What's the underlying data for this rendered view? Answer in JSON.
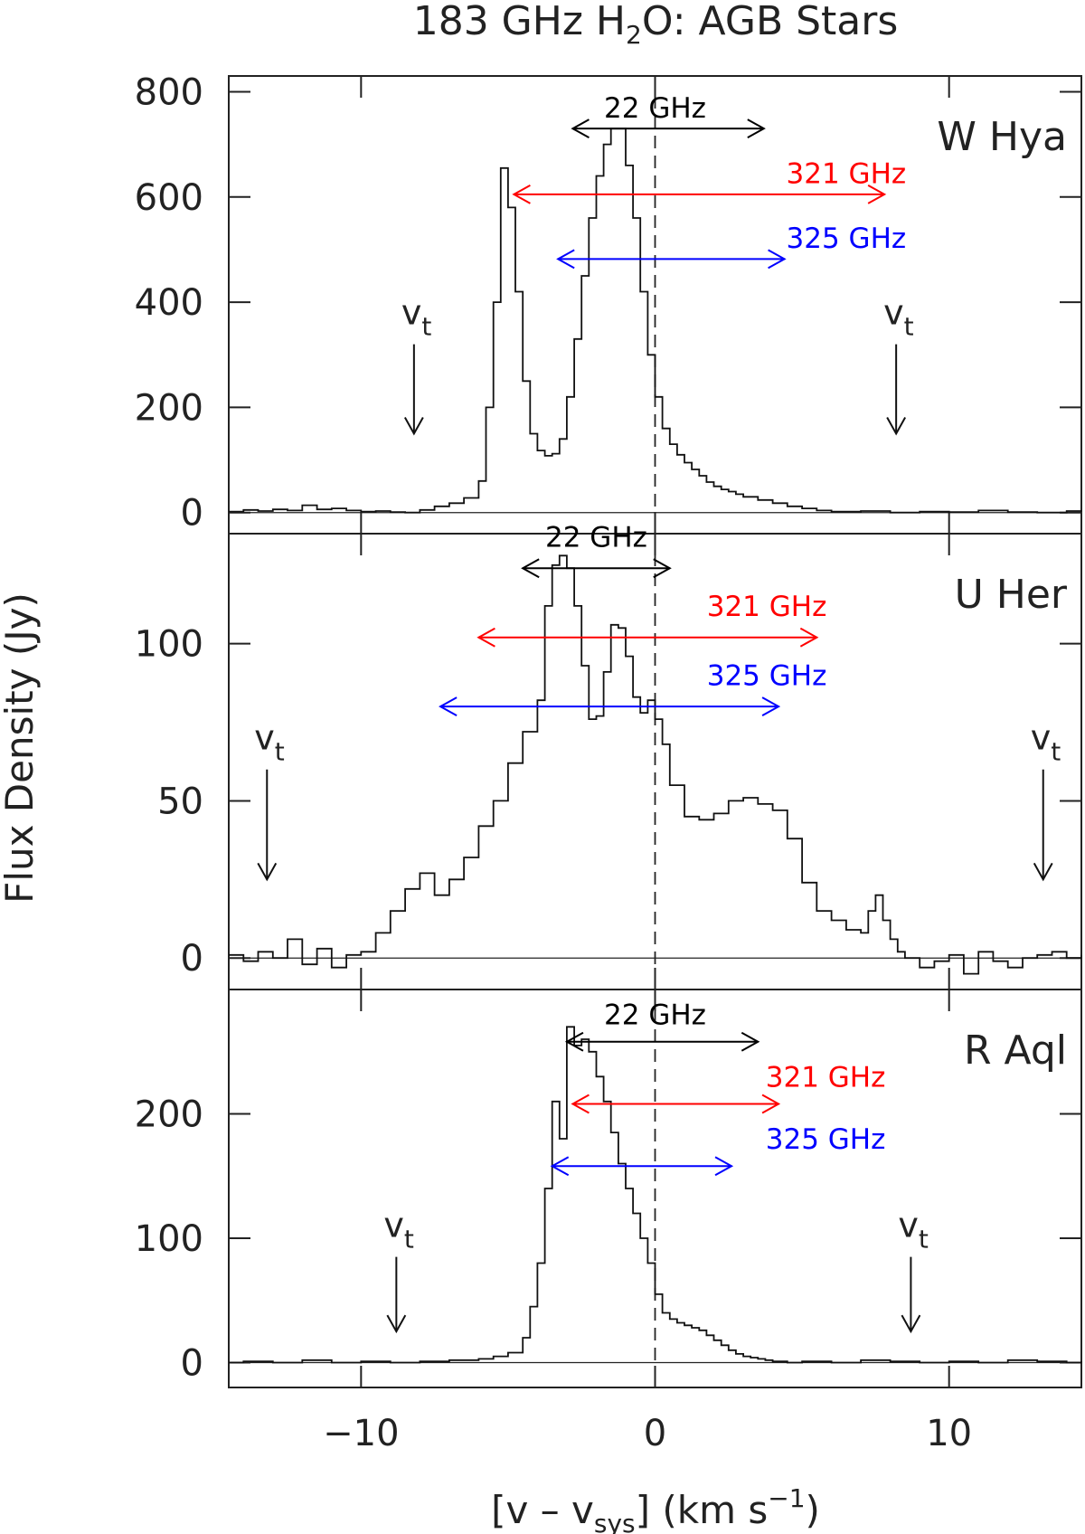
{
  "chart_data": {
    "type": "line",
    "title_main": "183 GHz H",
    "title_sub": "2",
    "title_rest": "O: AGB Stars",
    "xlabel_pre": "[v – v",
    "xlabel_sub": "sys",
    "xlabel_mid": "] (km s",
    "xlabel_sup": "−1",
    "xlabel_post": ")",
    "ylabel": "Flux Density (Jy)",
    "xlim": [
      -14.5,
      14.5
    ],
    "xticks": [
      -10,
      0,
      10
    ],
    "xtick_labels": [
      "−10",
      "0",
      "10"
    ],
    "vt_symbol": "v",
    "vt_sub": "t",
    "colors": {
      "c22": "#000000",
      "c321": "#ff0000",
      "c325": "#0000ff"
    },
    "panels": [
      {
        "name": "W Hya",
        "ylim": [
          -40,
          830
        ],
        "yticks": [
          0,
          200,
          400,
          600,
          800
        ],
        "ytick_labels": [
          "0",
          "200",
          "400",
          "600",
          "800"
        ],
        "vt": [
          {
            "x": -8.2,
            "ytip": 150,
            "ytop": 320
          },
          {
            "x": 8.2,
            "ytip": 150,
            "ytop": 320
          }
        ],
        "lines": [
          {
            "label": "22 GHz",
            "x1": -2.8,
            "x2": 3.7,
            "y": 730,
            "color": "#000000",
            "lx": 0.0,
            "ly": 770
          },
          {
            "label": "321 GHz",
            "x1": -4.8,
            "x2": 7.8,
            "y": 605,
            "color": "#ff0000",
            "lx": 6.5,
            "ly": 645
          },
          {
            "label": "325 GHz",
            "x1": -3.3,
            "x2": 4.4,
            "y": 482,
            "color": "#0000ff",
            "lx": 6.5,
            "ly": 522
          }
        ],
        "x": [
          -14.5,
          -14,
          -13.5,
          -13,
          -12.5,
          -12,
          -11.5,
          -11,
          -10.5,
          -10,
          -9.5,
          -9,
          -8.5,
          -8,
          -7.5,
          -7,
          -6.5,
          -6,
          -5.75,
          -5.5,
          -5.25,
          -5,
          -4.75,
          -4.5,
          -4.25,
          -4,
          -3.75,
          -3.5,
          -3.25,
          -3,
          -2.75,
          -2.5,
          -2.25,
          -2,
          -1.75,
          -1.5,
          -1.25,
          -1,
          -0.75,
          -0.5,
          -0.25,
          0,
          0.25,
          0.5,
          0.75,
          1,
          1.25,
          1.5,
          1.75,
          2,
          2.25,
          2.5,
          2.75,
          3,
          3.5,
          4,
          4.5,
          5,
          5.5,
          6,
          7,
          8,
          9,
          10,
          11,
          12,
          13,
          14,
          14.5
        ],
        "y": [
          2,
          5,
          3,
          6,
          4,
          14,
          6,
          8,
          4,
          2,
          3,
          1,
          0,
          5,
          12,
          18,
          28,
          60,
          200,
          400,
          655,
          580,
          420,
          250,
          150,
          118,
          108,
          112,
          140,
          220,
          330,
          450,
          560,
          640,
          700,
          730,
          730,
          660,
          560,
          420,
          300,
          220,
          160,
          130,
          110,
          95,
          82,
          70,
          58,
          50,
          44,
          40,
          35,
          30,
          24,
          18,
          12,
          8,
          4,
          2,
          3,
          0,
          2,
          1,
          4,
          1,
          0,
          3,
          2
        ]
      },
      {
        "name": "U Her",
        "ylim": [
          -10,
          135
        ],
        "yticks": [
          0,
          50,
          100
        ],
        "ytick_labels": [
          "0",
          "50",
          "100"
        ],
        "vt": [
          {
            "x": -13.2,
            "ytip": 25,
            "ytop": 60
          },
          {
            "x": 13.2,
            "ytip": 25,
            "ytop": 60
          }
        ],
        "lines": [
          {
            "label": "22 GHz",
            "x1": -4.5,
            "x2": 0.5,
            "y": 124,
            "color": "#000000",
            "lx": -2.0,
            "ly": 134
          },
          {
            "label": "321 GHz",
            "x1": -6.0,
            "x2": 5.5,
            "y": 102,
            "color": "#ff0000",
            "lx": 3.8,
            "ly": 112
          },
          {
            "label": "325 GHz",
            "x1": -7.3,
            "x2": 4.2,
            "y": 80,
            "color": "#0000ff",
            "lx": 3.8,
            "ly": 90
          }
        ],
        "x": [
          -14.5,
          -14,
          -13.5,
          -13,
          -12.5,
          -12,
          -11.5,
          -11,
          -10.5,
          -10,
          -9.5,
          -9,
          -8.5,
          -8,
          -7.5,
          -7,
          -6.5,
          -6,
          -5.5,
          -5,
          -4.5,
          -4,
          -3.75,
          -3.5,
          -3.25,
          -3,
          -2.75,
          -2.5,
          -2.25,
          -2,
          -1.75,
          -1.5,
          -1.25,
          -1,
          -0.75,
          -0.5,
          -0.25,
          0,
          0.25,
          0.5,
          1,
          1.5,
          2,
          2.5,
          3,
          3.5,
          4,
          4.5,
          5,
          5.5,
          6,
          6.5,
          7,
          7.25,
          7.5,
          7.75,
          8,
          8.25,
          8.5,
          9,
          9.5,
          10,
          10.5,
          11,
          11.5,
          12,
          12.5,
          13,
          13.5,
          14,
          14.5
        ],
        "y": [
          1,
          -1,
          2,
          0,
          6,
          -2,
          3,
          -3,
          1,
          2,
          8,
          15,
          22,
          27,
          20,
          25,
          32,
          42,
          50,
          62,
          72,
          82,
          112,
          125,
          128,
          124,
          112,
          93,
          76,
          77,
          91,
          106,
          105,
          96,
          83,
          78,
          82,
          76,
          68,
          55,
          45,
          44,
          46,
          50,
          51,
          49,
          47,
          38,
          24,
          15,
          12,
          9,
          8,
          15,
          20,
          12,
          6,
          2,
          0,
          -3,
          -1,
          1,
          -5,
          2,
          -1,
          -3,
          0,
          1,
          2,
          0,
          1
        ]
      },
      {
        "name": "R Aql",
        "ylim": [
          -20,
          300
        ],
        "yticks": [
          0,
          100,
          200
        ],
        "ytick_labels": [
          "0",
          "100",
          "200"
        ],
        "vt": [
          {
            "x": -8.8,
            "ytip": 25,
            "ytop": 85
          },
          {
            "x": 8.7,
            "ytip": 25,
            "ytop": 85
          }
        ],
        "lines": [
          {
            "label": "22 GHz",
            "x1": -3.0,
            "x2": 3.5,
            "y": 258,
            "color": "#000000",
            "lx": 0.0,
            "ly": 280
          },
          {
            "label": "321 GHz",
            "x1": -2.8,
            "x2": 4.2,
            "y": 208,
            "color": "#ff0000",
            "lx": 5.8,
            "ly": 230
          },
          {
            "label": "325 GHz",
            "x1": -3.5,
            "x2": 2.6,
            "y": 158,
            "color": "#0000ff",
            "lx": 5.8,
            "ly": 180
          }
        ],
        "x": [
          -14.5,
          -14,
          -13,
          -12,
          -11,
          -10,
          -9,
          -8,
          -7,
          -6,
          -5.5,
          -5,
          -4.5,
          -4.25,
          -4,
          -3.75,
          -3.5,
          -3.25,
          -3,
          -2.75,
          -2.5,
          -2.25,
          -2,
          -1.75,
          -1.5,
          -1.25,
          -1,
          -0.75,
          -0.5,
          -0.25,
          0,
          0.25,
          0.5,
          0.75,
          1,
          1.25,
          1.5,
          1.75,
          2,
          2.25,
          2.5,
          2.75,
          3,
          3.25,
          3.5,
          3.75,
          4,
          4.5,
          5,
          6,
          7,
          8,
          9,
          10,
          11,
          12,
          13,
          14,
          14.5
        ],
        "y": [
          0,
          1,
          0,
          2,
          0,
          1,
          0,
          1,
          2,
          3,
          5,
          8,
          20,
          45,
          80,
          140,
          210,
          180,
          270,
          255,
          260,
          250,
          230,
          210,
          185,
          160,
          140,
          120,
          100,
          80,
          55,
          40,
          35,
          32,
          30,
          28,
          26,
          22,
          18,
          14,
          10,
          7,
          5,
          4,
          3,
          2,
          1,
          0,
          1,
          0,
          2,
          1,
          0,
          1,
          0,
          2,
          1,
          0,
          1
        ]
      }
    ]
  }
}
